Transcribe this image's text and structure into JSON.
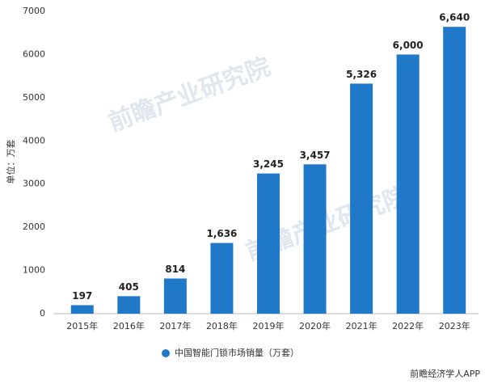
{
  "chart_data": {
    "type": "bar",
    "y_label": "单位：万套",
    "legend_label": "中国智能门锁市场销量（万套）",
    "watermark": "前瞻产业研究院",
    "source": "前瞻经济学人APP",
    "categories": [
      "2015年",
      "2016年",
      "2017年",
      "2018年",
      "2019年",
      "2020年",
      "2021年",
      "2022年",
      "2023年"
    ],
    "values": [
      197,
      405,
      814,
      1636,
      3245,
      3457,
      5326,
      6000,
      6640
    ],
    "value_labels": [
      "197",
      "405",
      "814",
      "1,636",
      "3,245",
      "3,457",
      "5,326",
      "6,000",
      "6,640"
    ],
    "color": "#1f78c8",
    "ylim": [
      0,
      7000
    ],
    "yticks": [
      0,
      1000,
      2000,
      3000,
      4000,
      5000,
      6000,
      7000
    ],
    "grid": false
  }
}
